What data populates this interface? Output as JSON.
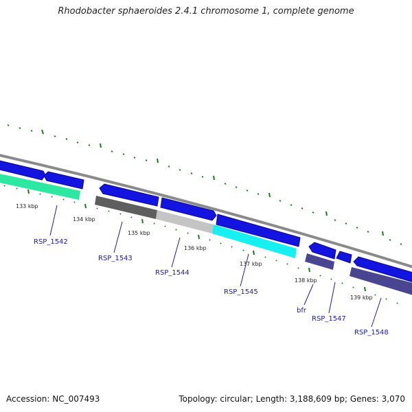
{
  "title": "Rhodobacter sphaeroides 2.4.1 chromosome 1, complete genome",
  "footer": {
    "accession": "Accession: NC_007493",
    "topology": "Topology: circular; Length: 3,188,609 bp; Genes: 3,070"
  },
  "kbp_labels": [
    "133 kbp",
    "134 kbp",
    "135 kbp",
    "136 kbp",
    "137 kbp",
    "138 kbp",
    "139 kbp"
  ],
  "genes": [
    "RSP_1542",
    "RSP_1543",
    "RSP_1544",
    "RSP_1545",
    "bfr",
    "RSP_1547",
    "RSP_1548"
  ],
  "colors": {
    "backbone": "#8a8a8a",
    "cds": "#1414e0",
    "tick": "#1a7a1a",
    "label": "#1a1aa0",
    "feature_green": "#2de8a0",
    "feature_dark_gray": "#5e5e5e",
    "feature_light_gray": "#c4c4c4",
    "feature_cyan": "#16f0f0",
    "feature_purple": "#4a4590"
  }
}
